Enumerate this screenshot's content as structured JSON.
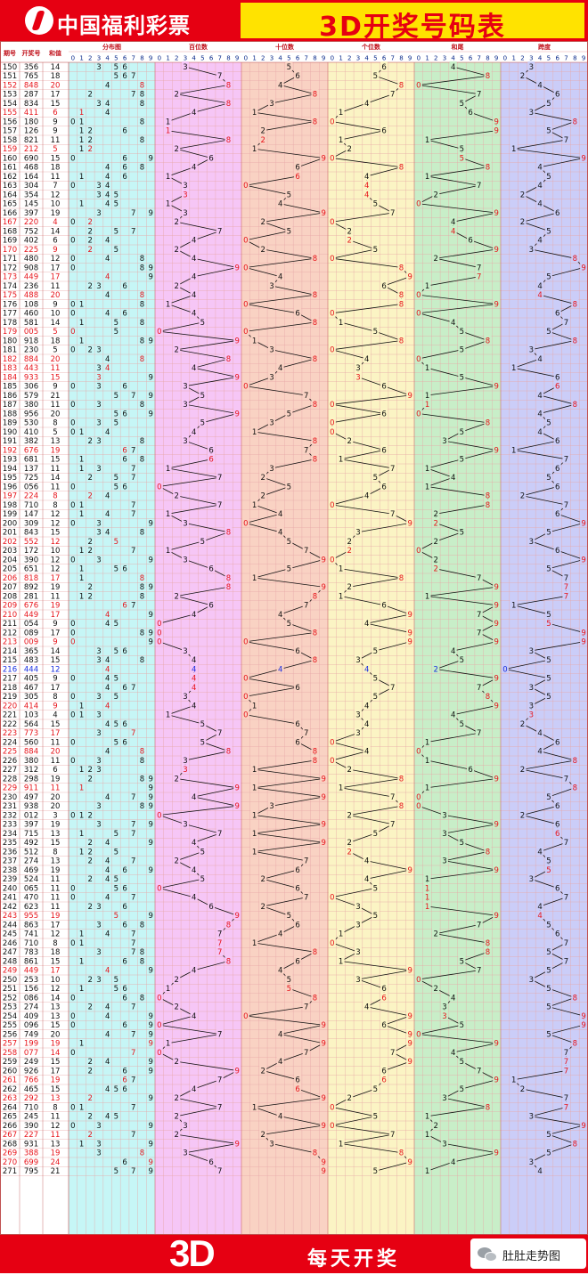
{
  "header": {
    "brand": "中国福利彩票",
    "title": "3D开奖号码表"
  },
  "footer": {
    "big": "3D",
    "slogan": "每天开奖",
    "wechat": "肚肚走势图"
  },
  "chart_data": {
    "type": "table",
    "column_headers": [
      "期号",
      "开奖号",
      "和值",
      "分布图",
      "百位数",
      "十位数",
      "个位数",
      "和尾",
      "跨度"
    ],
    "digit_labels": [
      "0",
      "1",
      "2",
      "3",
      "4",
      "5",
      "6",
      "7",
      "8",
      "9"
    ],
    "colors": {
      "red": "#e8141b",
      "blue": "#1a2ee0",
      "black": "#111111",
      "zone_hundreds": "#f6c6f6",
      "zone_tens": "#f9d2c3",
      "zone_units": "#fbf4c4",
      "zone_sumtail": "#c8eec8",
      "zone_span": "#cbcdf8",
      "zone_dist": "#c6f6f6"
    },
    "draws": [
      {
        "issue": "150",
        "number": "356",
        "sum": "14"
      },
      {
        "issue": "151",
        "number": "765",
        "sum": "18"
      },
      {
        "issue": "152",
        "number": "848",
        "sum": "20"
      },
      {
        "issue": "153",
        "number": "287",
        "sum": "17"
      },
      {
        "issue": "154",
        "number": "834",
        "sum": "15"
      },
      {
        "issue": "155",
        "number": "411",
        "sum": "6"
      },
      {
        "issue": "156",
        "number": "180",
        "sum": "9"
      },
      {
        "issue": "157",
        "number": "126",
        "sum": "9"
      },
      {
        "issue": "158",
        "number": "821",
        "sum": "11"
      },
      {
        "issue": "159",
        "number": "212",
        "sum": "5"
      },
      {
        "issue": "160",
        "number": "690",
        "sum": "15"
      },
      {
        "issue": "161",
        "number": "468",
        "sum": "18"
      },
      {
        "issue": "162",
        "number": "164",
        "sum": "11"
      },
      {
        "issue": "163",
        "number": "304",
        "sum": "7"
      },
      {
        "issue": "164",
        "number": "354",
        "sum": "12"
      },
      {
        "issue": "165",
        "number": "145",
        "sum": "10"
      },
      {
        "issue": "166",
        "number": "397",
        "sum": "19"
      },
      {
        "issue": "167",
        "number": "220",
        "sum": "4"
      },
      {
        "issue": "168",
        "number": "752",
        "sum": "14"
      },
      {
        "issue": "169",
        "number": "402",
        "sum": "6"
      },
      {
        "issue": "170",
        "number": "225",
        "sum": "9"
      },
      {
        "issue": "171",
        "number": "480",
        "sum": "12"
      },
      {
        "issue": "172",
        "number": "908",
        "sum": "17"
      },
      {
        "issue": "173",
        "number": "449",
        "sum": "17"
      },
      {
        "issue": "174",
        "number": "236",
        "sum": "11"
      },
      {
        "issue": "175",
        "number": "488",
        "sum": "20"
      },
      {
        "issue": "176",
        "number": "108",
        "sum": "9"
      },
      {
        "issue": "177",
        "number": "460",
        "sum": "10"
      },
      {
        "issue": "178",
        "number": "581",
        "sum": "14"
      },
      {
        "issue": "179",
        "number": "005",
        "sum": "5"
      },
      {
        "issue": "180",
        "number": "918",
        "sum": "18"
      },
      {
        "issue": "181",
        "number": "230",
        "sum": "5"
      },
      {
        "issue": "182",
        "number": "884",
        "sum": "20"
      },
      {
        "issue": "183",
        "number": "443",
        "sum": "11"
      },
      {
        "issue": "184",
        "number": "933",
        "sum": "15"
      },
      {
        "issue": "185",
        "number": "306",
        "sum": "9"
      },
      {
        "issue": "186",
        "number": "579",
        "sum": "21"
      },
      {
        "issue": "187",
        "number": "380",
        "sum": "11"
      },
      {
        "issue": "188",
        "number": "956",
        "sum": "20"
      },
      {
        "issue": "189",
        "number": "530",
        "sum": "8"
      },
      {
        "issue": "190",
        "number": "410",
        "sum": "5"
      },
      {
        "issue": "191",
        "number": "382",
        "sum": "13"
      },
      {
        "issue": "192",
        "number": "676",
        "sum": "19"
      },
      {
        "issue": "193",
        "number": "681",
        "sum": "15"
      },
      {
        "issue": "194",
        "number": "137",
        "sum": "11"
      },
      {
        "issue": "195",
        "number": "725",
        "sum": "14"
      },
      {
        "issue": "196",
        "number": "056",
        "sum": "11"
      },
      {
        "issue": "197",
        "number": "224",
        "sum": "8"
      },
      {
        "issue": "198",
        "number": "710",
        "sum": "8"
      },
      {
        "issue": "199",
        "number": "147",
        "sum": "12"
      },
      {
        "issue": "200",
        "number": "309",
        "sum": "12"
      },
      {
        "issue": "201",
        "number": "843",
        "sum": "15"
      },
      {
        "issue": "202",
        "number": "552",
        "sum": "12"
      },
      {
        "issue": "203",
        "number": "172",
        "sum": "10"
      },
      {
        "issue": "204",
        "number": "390",
        "sum": "12"
      },
      {
        "issue": "205",
        "number": "651",
        "sum": "12"
      },
      {
        "issue": "206",
        "number": "818",
        "sum": "17"
      },
      {
        "issue": "207",
        "number": "892",
        "sum": "19"
      },
      {
        "issue": "208",
        "number": "281",
        "sum": "11"
      },
      {
        "issue": "209",
        "number": "676",
        "sum": "19"
      },
      {
        "issue": "210",
        "number": "449",
        "sum": "17"
      },
      {
        "issue": "211",
        "number": "054",
        "sum": "9"
      },
      {
        "issue": "212",
        "number": "089",
        "sum": "17"
      },
      {
        "issue": "213",
        "number": "009",
        "sum": "9"
      },
      {
        "issue": "214",
        "number": "365",
        "sum": "14"
      },
      {
        "issue": "215",
        "number": "483",
        "sum": "15"
      },
      {
        "issue": "216",
        "number": "444",
        "sum": "12"
      },
      {
        "issue": "217",
        "number": "405",
        "sum": "9"
      },
      {
        "issue": "218",
        "number": "467",
        "sum": "17"
      },
      {
        "issue": "219",
        "number": "305",
        "sum": "8"
      },
      {
        "issue": "220",
        "number": "414",
        "sum": "9"
      },
      {
        "issue": "221",
        "number": "103",
        "sum": "4"
      },
      {
        "issue": "222",
        "number": "564",
        "sum": "15"
      },
      {
        "issue": "223",
        "number": "773",
        "sum": "17"
      },
      {
        "issue": "224",
        "number": "560",
        "sum": "11"
      },
      {
        "issue": "225",
        "number": "884",
        "sum": "20"
      },
      {
        "issue": "226",
        "number": "380",
        "sum": "11"
      },
      {
        "issue": "227",
        "number": "312",
        "sum": "6"
      },
      {
        "issue": "228",
        "number": "298",
        "sum": "19"
      },
      {
        "issue": "229",
        "number": "911",
        "sum": "11"
      },
      {
        "issue": "230",
        "number": "497",
        "sum": "20"
      },
      {
        "issue": "231",
        "number": "938",
        "sum": "20"
      },
      {
        "issue": "232",
        "number": "012",
        "sum": "3"
      },
      {
        "issue": "233",
        "number": "397",
        "sum": "19"
      },
      {
        "issue": "234",
        "number": "715",
        "sum": "13"
      },
      {
        "issue": "235",
        "number": "492",
        "sum": "15"
      },
      {
        "issue": "236",
        "number": "512",
        "sum": "8"
      },
      {
        "issue": "237",
        "number": "274",
        "sum": "13"
      },
      {
        "issue": "238",
        "number": "469",
        "sum": "19"
      },
      {
        "issue": "239",
        "number": "524",
        "sum": "11"
      },
      {
        "issue": "240",
        "number": "065",
        "sum": "11"
      },
      {
        "issue": "241",
        "number": "470",
        "sum": "11"
      },
      {
        "issue": "242",
        "number": "623",
        "sum": "11"
      },
      {
        "issue": "243",
        "number": "955",
        "sum": "19"
      },
      {
        "issue": "244",
        "number": "863",
        "sum": "17"
      },
      {
        "issue": "245",
        "number": "741",
        "sum": "12"
      },
      {
        "issue": "246",
        "number": "710",
        "sum": "8"
      },
      {
        "issue": "247",
        "number": "783",
        "sum": "18"
      },
      {
        "issue": "248",
        "number": "861",
        "sum": "15"
      },
      {
        "issue": "249",
        "number": "449",
        "sum": "17"
      },
      {
        "issue": "250",
        "number": "253",
        "sum": "10"
      },
      {
        "issue": "251",
        "number": "156",
        "sum": "12"
      },
      {
        "issue": "252",
        "number": "086",
        "sum": "14"
      },
      {
        "issue": "253",
        "number": "274",
        "sum": "13"
      },
      {
        "issue": "254",
        "number": "409",
        "sum": "13"
      },
      {
        "issue": "255",
        "number": "096",
        "sum": "15"
      },
      {
        "issue": "256",
        "number": "749",
        "sum": "20"
      },
      {
        "issue": "257",
        "number": "199",
        "sum": "19"
      },
      {
        "issue": "258",
        "number": "077",
        "sum": "14"
      },
      {
        "issue": "259",
        "number": "249",
        "sum": "15"
      },
      {
        "issue": "260",
        "number": "926",
        "sum": "17"
      },
      {
        "issue": "261",
        "number": "766",
        "sum": "19"
      },
      {
        "issue": "262",
        "number": "465",
        "sum": "15"
      },
      {
        "issue": "263",
        "number": "292",
        "sum": "13"
      },
      {
        "issue": "264",
        "number": "710",
        "sum": "8"
      },
      {
        "issue": "265",
        "number": "245",
        "sum": "11"
      },
      {
        "issue": "266",
        "number": "390",
        "sum": "12"
      },
      {
        "issue": "267",
        "number": "227",
        "sum": "11"
      },
      {
        "issue": "268",
        "number": "931",
        "sum": "13"
      },
      {
        "issue": "269",
        "number": "388",
        "sum": "19"
      },
      {
        "issue": "270",
        "number": "699",
        "sum": "24"
      },
      {
        "issue": "271",
        "number": "795",
        "sum": "21"
      }
    ]
  }
}
